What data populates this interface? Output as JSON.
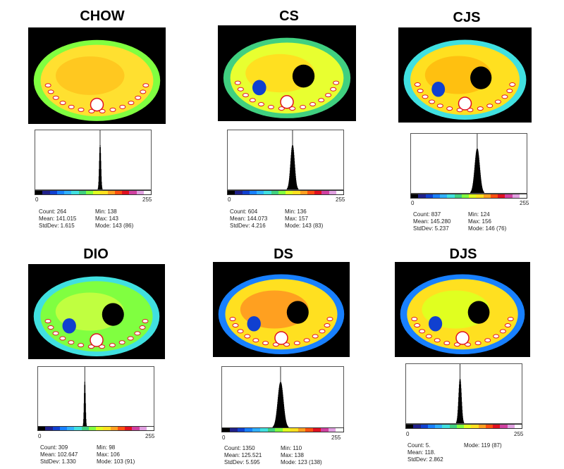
{
  "tick_min": "0",
  "tick_max": "255",
  "colorbar": [
    "#000000",
    "#20208a",
    "#1040d0",
    "#1880ff",
    "#30b0ff",
    "#40e0e0",
    "#40d080",
    "#80ff40",
    "#e0ff20",
    "#ffe020",
    "#ffa020",
    "#ff5010",
    "#e01020",
    "#d040a0",
    "#e0a0e0",
    "#ffffff"
  ],
  "watermark": "",
  "chart_data": [
    {
      "type": "histogram",
      "title": "CHOW",
      "peak": 143,
      "spread": 1.6,
      "stats": {
        "count": "Count: 264",
        "mean": "Mean: 141.015",
        "stddev": "StdDev: 1.615",
        "min": "Min: 138",
        "max": "Max: 143",
        "mode": "Mode: 143 (86)"
      }
    },
    {
      "type": "histogram",
      "title": "CS",
      "peak": 143,
      "spread": 4.2,
      "stats": {
        "count": "Count: 604",
        "mean": "Mean: 144.073",
        "stddev": "StdDev: 4.216",
        "min": "Min: 136",
        "max": "Max: 157",
        "mode": "Mode: 143 (83)"
      }
    },
    {
      "type": "histogram",
      "title": "CJS",
      "peak": 146,
      "spread": 5.2,
      "stats": {
        "count": "Count: 837",
        "mean": "Mean: 145.280",
        "stddev": "StdDev: 5.237",
        "min": "Min: 124",
        "max": "Max: 156",
        "mode": "Mode: 146 (76)"
      }
    },
    {
      "type": "histogram",
      "title": "DIO",
      "peak": 103,
      "spread": 1.3,
      "stats": {
        "count": "Count: 309",
        "mean": "Mean: 102.647",
        "stddev": "StdDev: 1.330",
        "min": "Min: 98",
        "max": "Max: 106",
        "mode": "Mode: 103 (91)"
      }
    },
    {
      "type": "histogram",
      "title": "DS",
      "peak": 123,
      "spread": 5.6,
      "stats": {
        "count": "Count: 1350",
        "mean": "Mean: 125.521",
        "stddev": "StdDev: 5.595",
        "min": "Min: 110",
        "max": "Max: 138",
        "mode": "Mode: 123 (138)"
      }
    },
    {
      "type": "histogram",
      "title": "DJS",
      "peak": 119,
      "spread": 2.9,
      "stats": {
        "count": "Count: 5.",
        "mean": "Mean: 118.",
        "stddev": "StdDev: 2.862",
        "min": "",
        "max": "",
        "mode": "Mode: 119 (87)"
      }
    }
  ]
}
